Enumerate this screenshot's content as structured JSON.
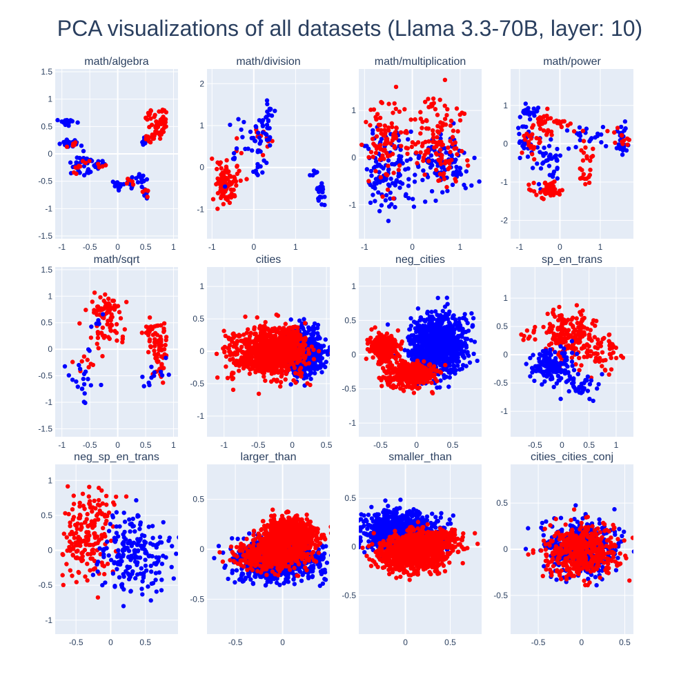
{
  "title": "PCA visualizations of all datasets (Llama 3.3-70B, layer: 10)",
  "colors": {
    "series_a": "#ff0000",
    "series_b": "#0000ff",
    "plot_bg": "#e5ecf6",
    "text": "#2a3f5f"
  },
  "chart_data": [
    {
      "type": "scatter",
      "title": "math/algebra",
      "xlim": [
        -1.12,
        1.08
      ],
      "ylim": [
        -1.55,
        1.55
      ],
      "xticks": [
        -1,
        -0.5,
        0,
        0.5,
        1
      ],
      "yticks": [
        -1.5,
        -1,
        -0.5,
        0,
        0.5,
        1,
        1.5
      ],
      "clusters": [
        {
          "color": "blue",
          "cx": -0.9,
          "cy": 0.58,
          "sx": 0.07,
          "sy": 0.03,
          "n": 16
        },
        {
          "color": "blue",
          "cx": -0.85,
          "cy": 0.18,
          "sx": 0.1,
          "sy": 0.04,
          "n": 22
        },
        {
          "color": "blue",
          "cx": -0.75,
          "cy": -0.25,
          "sx": 0.06,
          "sy": 0.06,
          "n": 12
        },
        {
          "color": "blue",
          "cx": -0.58,
          "cy": -0.1,
          "sx": 0.06,
          "sy": 0.05,
          "n": 16
        },
        {
          "color": "blue",
          "cx": -0.55,
          "cy": -0.3,
          "sx": 0.05,
          "sy": 0.05,
          "n": 10
        },
        {
          "color": "blue",
          "cx": -0.32,
          "cy": -0.2,
          "sx": 0.06,
          "sy": 0.03,
          "n": 12
        },
        {
          "color": "blue",
          "cx": 0.0,
          "cy": -0.55,
          "sx": 0.06,
          "sy": 0.05,
          "n": 16
        },
        {
          "color": "blue",
          "cx": 0.22,
          "cy": -0.5,
          "sx": 0.05,
          "sy": 0.05,
          "n": 10
        },
        {
          "color": "blue",
          "cx": 0.42,
          "cy": -0.45,
          "sx": 0.05,
          "sy": 0.06,
          "n": 12
        },
        {
          "color": "blue",
          "cx": 0.5,
          "cy": -0.72,
          "sx": 0.03,
          "sy": 0.05,
          "n": 10
        },
        {
          "color": "blue",
          "cx": 0.48,
          "cy": 0.22,
          "sx": 0.05,
          "sy": 0.04,
          "n": 12
        },
        {
          "color": "red",
          "cx": 0.75,
          "cy": 0.55,
          "sx": 0.08,
          "sy": 0.16,
          "n": 55
        },
        {
          "color": "red",
          "cx": 0.58,
          "cy": 0.28,
          "sx": 0.06,
          "sy": 0.06,
          "n": 12
        },
        {
          "color": "red",
          "cx": 0.55,
          "cy": 0.72,
          "sx": 0.05,
          "sy": 0.05,
          "n": 8
        },
        {
          "color": "red",
          "cx": -0.88,
          "cy": 0.18,
          "sx": 0.08,
          "sy": 0.03,
          "n": 5
        },
        {
          "color": "red",
          "cx": -0.55,
          "cy": -0.2,
          "sx": 0.07,
          "sy": 0.05,
          "n": 6
        },
        {
          "color": "red",
          "cx": -0.3,
          "cy": -0.22,
          "sx": 0.05,
          "sy": 0.03,
          "n": 4
        },
        {
          "color": "red",
          "cx": 0.2,
          "cy": -0.48,
          "sx": 0.06,
          "sy": 0.05,
          "n": 5
        },
        {
          "color": "red",
          "cx": 0.5,
          "cy": -0.7,
          "sx": 0.04,
          "sy": 0.05,
          "n": 5
        },
        {
          "color": "red",
          "cx": -0.75,
          "cy": -0.3,
          "sx": 0.04,
          "sy": 0.04,
          "n": 3
        }
      ]
    },
    {
      "type": "scatter",
      "title": "math/division",
      "xlim": [
        -1.12,
        1.82
      ],
      "ylim": [
        -1.7,
        2.35
      ],
      "xticks": [
        -1,
        0,
        1
      ],
      "yticks": [
        -1,
        0,
        1,
        2
      ],
      "clusters": [
        {
          "color": "red",
          "cx": -0.75,
          "cy": -0.45,
          "sx": 0.09,
          "sy": 0.25,
          "n": 80
        },
        {
          "color": "red",
          "cx": -0.5,
          "cy": -0.55,
          "sx": 0.08,
          "sy": 0.15,
          "n": 15
        },
        {
          "color": "red",
          "cx": -0.3,
          "cy": 0.1,
          "sx": 0.12,
          "sy": 0.3,
          "n": 10
        },
        {
          "color": "red",
          "cx": 0.2,
          "cy": 0.7,
          "sx": 0.1,
          "sy": 0.3,
          "n": 12
        },
        {
          "color": "blue",
          "cx": 0.1,
          "cy": 0.7,
          "sx": 0.15,
          "sy": 0.3,
          "n": 35
        },
        {
          "color": "blue",
          "cx": 0.35,
          "cy": 1.2,
          "sx": 0.06,
          "sy": 0.2,
          "n": 15
        },
        {
          "color": "blue",
          "cx": -0.5,
          "cy": 0.5,
          "sx": 0.15,
          "sy": 0.3,
          "n": 10
        },
        {
          "color": "blue",
          "cx": 0.1,
          "cy": -0.05,
          "sx": 0.04,
          "sy": 0.1,
          "n": 8
        },
        {
          "color": "blue",
          "cx": 1.6,
          "cy": -0.55,
          "sx": 0.05,
          "sy": 0.15,
          "n": 25
        },
        {
          "color": "blue",
          "cx": 1.45,
          "cy": -0.1,
          "sx": 0.05,
          "sy": 0.08,
          "n": 6
        }
      ]
    },
    {
      "type": "scatter",
      "title": "math/multiplication",
      "xlim": [
        -1.12,
        1.45
      ],
      "ylim": [
        -1.72,
        1.88
      ],
      "xticks": [
        -1,
        0,
        1
      ],
      "yticks": [
        -1,
        0,
        1
      ],
      "clusters": [
        {
          "color": "blue",
          "cx": -0.55,
          "cy": -0.3,
          "sx": 0.25,
          "sy": 0.45,
          "n": 120
        },
        {
          "color": "blue",
          "cx": 0.6,
          "cy": -0.15,
          "sx": 0.35,
          "sy": 0.35,
          "n": 100
        },
        {
          "color": "red",
          "cx": -0.55,
          "cy": 0.35,
          "sx": 0.25,
          "sy": 0.45,
          "n": 100
        },
        {
          "color": "red",
          "cx": 0.55,
          "cy": 0.3,
          "sx": 0.35,
          "sy": 0.45,
          "n": 110
        },
        {
          "color": "red",
          "cx": 0.35,
          "cy": 1.15,
          "sx": 0.06,
          "sy": 0.08,
          "n": 8
        }
      ]
    },
    {
      "type": "scatter",
      "title": "math/power",
      "xlim": [
        -1.22,
        1.82
      ],
      "ylim": [
        -2.48,
        1.95
      ],
      "xticks": [
        -1,
        0,
        1
      ],
      "yticks": [
        -2,
        -1,
        0,
        1
      ],
      "clusters": [
        {
          "color": "blue",
          "cx": -0.85,
          "cy": 0.2,
          "sx": 0.1,
          "sy": 0.3,
          "n": 30
        },
        {
          "color": "blue",
          "cx": -0.75,
          "cy": 0.85,
          "sx": 0.1,
          "sy": 0.1,
          "n": 15
        },
        {
          "color": "blue",
          "cx": -0.3,
          "cy": -0.4,
          "sx": 0.25,
          "sy": 0.3,
          "n": 40
        },
        {
          "color": "blue",
          "cx": 0.7,
          "cy": 0.2,
          "sx": 0.3,
          "sy": 0.15,
          "n": 20
        },
        {
          "color": "blue",
          "cx": 1.55,
          "cy": 0.1,
          "sx": 0.08,
          "sy": 0.2,
          "n": 25
        },
        {
          "color": "red",
          "cx": -0.45,
          "cy": 0.55,
          "sx": 0.15,
          "sy": 0.15,
          "n": 25
        },
        {
          "color": "red",
          "cx": -0.7,
          "cy": 0.1,
          "sx": 0.12,
          "sy": 0.25,
          "n": 20
        },
        {
          "color": "red",
          "cx": -0.25,
          "cy": -1.2,
          "sx": 0.18,
          "sy": 0.15,
          "n": 45
        },
        {
          "color": "red",
          "cx": 0.1,
          "cy": 0.55,
          "sx": 0.15,
          "sy": 0.1,
          "n": 12
        },
        {
          "color": "red",
          "cx": 0.7,
          "cy": -0.2,
          "sx": 0.12,
          "sy": 0.3,
          "n": 15
        },
        {
          "color": "red",
          "cx": 0.65,
          "cy": -0.85,
          "sx": 0.08,
          "sy": 0.1,
          "n": 10
        },
        {
          "color": "red",
          "cx": 1.5,
          "cy": 0.2,
          "sx": 0.1,
          "sy": 0.15,
          "n": 12
        }
      ]
    },
    {
      "type": "scatter",
      "title": "math/sqrt",
      "xlim": [
        -1.12,
        1.08
      ],
      "ylim": [
        -1.65,
        1.55
      ],
      "xticks": [
        -1,
        -0.5,
        0,
        0.5,
        1
      ],
      "yticks": [
        -1.5,
        -1,
        -0.5,
        0,
        0.5,
        1,
        1.5
      ],
      "clusters": [
        {
          "color": "red",
          "cx": -0.2,
          "cy": 0.7,
          "sx": 0.15,
          "sy": 0.12,
          "n": 60
        },
        {
          "color": "red",
          "cx": -0.15,
          "cy": 0.3,
          "sx": 0.2,
          "sy": 0.15,
          "n": 25
        },
        {
          "color": "red",
          "cx": 0.6,
          "cy": 0.35,
          "sx": 0.1,
          "sy": 0.15,
          "n": 25
        },
        {
          "color": "red",
          "cx": 0.75,
          "cy": -0.1,
          "sx": 0.08,
          "sy": 0.3,
          "n": 55
        },
        {
          "color": "red",
          "cx": -0.45,
          "cy": -0.2,
          "sx": 0.15,
          "sy": 0.15,
          "n": 10
        },
        {
          "color": "blue",
          "cx": -0.75,
          "cy": -0.65,
          "sx": 0.15,
          "sy": 0.1,
          "n": 8
        },
        {
          "color": "blue",
          "cx": -0.6,
          "cy": -0.97,
          "sx": 0.02,
          "sy": 0.06,
          "n": 3
        },
        {
          "color": "blue",
          "cx": -0.5,
          "cy": -0.2,
          "sx": 0.15,
          "sy": 0.3,
          "n": 10
        },
        {
          "color": "blue",
          "cx": 0.7,
          "cy": -0.45,
          "sx": 0.15,
          "sy": 0.15,
          "n": 12
        },
        {
          "color": "blue",
          "cx": -0.4,
          "cy": 0.55,
          "sx": 0.15,
          "sy": 0.15,
          "n": 5
        }
      ]
    },
    {
      "type": "scatter",
      "title": "cities",
      "xlim": [
        -1.25,
        0.55
      ],
      "ylim": [
        -1.32,
        1.3
      ],
      "xticks": [
        -1,
        -0.5,
        0,
        0.5
      ],
      "yticks": [
        -1,
        -0.5,
        0,
        0.5,
        1
      ],
      "clusters": [
        {
          "color": "blue",
          "cx": 0.15,
          "cy": 0.0,
          "sx": 0.15,
          "sy": 0.17,
          "n": 600
        },
        {
          "color": "red",
          "cx": -0.35,
          "cy": -0.02,
          "sx": 0.28,
          "sy": 0.18,
          "n": 700
        },
        {
          "color": "red",
          "cx": -0.05,
          "cy": 0.05,
          "sx": 0.12,
          "sy": 0.15,
          "n": 250
        }
      ]
    },
    {
      "type": "scatter",
      "title": "neg_cities",
      "xlim": [
        -0.8,
        0.9
      ],
      "ylim": [
        -1.2,
        1.28
      ],
      "xticks": [
        -0.5,
        0,
        0.5
      ],
      "yticks": [
        -1,
        -0.5,
        0,
        0.5,
        1
      ],
      "clusters": [
        {
          "color": "blue",
          "cx": 0.28,
          "cy": 0.15,
          "sx": 0.2,
          "sy": 0.22,
          "n": 900
        },
        {
          "color": "red",
          "cx": -0.45,
          "cy": 0.1,
          "sx": 0.09,
          "sy": 0.1,
          "n": 300
        },
        {
          "color": "red",
          "cx": -0.1,
          "cy": -0.3,
          "sx": 0.17,
          "sy": 0.09,
          "n": 350
        }
      ]
    },
    {
      "type": "scatter",
      "title": "sp_en_trans",
      "xlim": [
        -0.95,
        1.32
      ],
      "ylim": [
        -1.45,
        1.55
      ],
      "xticks": [
        -0.5,
        0,
        0.5,
        1
      ],
      "yticks": [
        -1,
        -0.5,
        0,
        0.5,
        1
      ],
      "clusters": [
        {
          "color": "red",
          "cx": 0.1,
          "cy": 0.35,
          "sx": 0.22,
          "sy": 0.2,
          "n": 180
        },
        {
          "color": "red",
          "cx": 0.7,
          "cy": 0.0,
          "sx": 0.2,
          "sy": 0.2,
          "n": 60
        },
        {
          "color": "blue",
          "cx": -0.2,
          "cy": -0.2,
          "sx": 0.2,
          "sy": 0.15,
          "n": 140
        },
        {
          "color": "blue",
          "cx": 0.35,
          "cy": -0.55,
          "sx": 0.15,
          "sy": 0.1,
          "n": 40
        },
        {
          "color": "red",
          "cx": -0.6,
          "cy": 0.35,
          "sx": 0.08,
          "sy": 0.1,
          "n": 10
        }
      ]
    },
    {
      "type": "scatter",
      "title": "neg_sp_en_trans",
      "xlim": [
        -0.8,
        0.97
      ],
      "ylim": [
        -1.2,
        1.23
      ],
      "xticks": [
        -0.5,
        0,
        0.5
      ],
      "yticks": [
        -1,
        -0.5,
        0,
        0.5,
        1
      ],
      "clusters": [
        {
          "color": "red",
          "cx": -0.35,
          "cy": 0.15,
          "sx": 0.2,
          "sy": 0.3,
          "n": 170
        },
        {
          "color": "red",
          "cx": -0.1,
          "cy": 0.6,
          "sx": 0.08,
          "sy": 0.12,
          "n": 20
        },
        {
          "color": "blue",
          "cx": 0.35,
          "cy": -0.05,
          "sx": 0.25,
          "sy": 0.3,
          "n": 200
        }
      ]
    },
    {
      "type": "scatter",
      "title": "larger_than",
      "xlim": [
        -0.8,
        0.5
      ],
      "ylim": [
        -0.85,
        0.85
      ],
      "xticks": [
        -0.5,
        0
      ],
      "yticks": [
        -0.5,
        0,
        0.5
      ],
      "clusters": [
        {
          "color": "blue",
          "cx": -0.05,
          "cy": -0.1,
          "sx": 0.22,
          "sy": 0.1,
          "n": 900
        },
        {
          "color": "red",
          "cx": 0.1,
          "cy": 0.15,
          "sx": 0.15,
          "sy": 0.08,
          "n": 600
        },
        {
          "color": "red",
          "cx": -0.1,
          "cy": -0.05,
          "sx": 0.18,
          "sy": 0.08,
          "n": 500
        }
      ]
    },
    {
      "type": "scatter",
      "title": "smaller_than",
      "xlim": [
        -0.52,
        0.85
      ],
      "ylim": [
        -0.9,
        0.85
      ],
      "xticks": [
        0,
        0.5
      ],
      "yticks": [
        -0.5,
        0,
        0.5
      ],
      "clusters": [
        {
          "color": "blue",
          "cx": -0.05,
          "cy": 0.15,
          "sx": 0.2,
          "sy": 0.1,
          "n": 900
        },
        {
          "color": "red",
          "cx": 0.05,
          "cy": -0.1,
          "sx": 0.2,
          "sy": 0.08,
          "n": 600
        },
        {
          "color": "red",
          "cx": 0.25,
          "cy": 0.05,
          "sx": 0.18,
          "sy": 0.07,
          "n": 400
        }
      ]
    },
    {
      "type": "scatter",
      "title": "cities_cities_conj",
      "xlim": [
        -0.82,
        0.6
      ],
      "ylim": [
        -0.92,
        0.92
      ],
      "xticks": [
        -0.5,
        0,
        0.5
      ],
      "yticks": [
        -0.5,
        0,
        0.5
      ],
      "clusters": [
        {
          "color": "blue",
          "cx": 0.0,
          "cy": 0.02,
          "sx": 0.2,
          "sy": 0.15,
          "n": 500
        },
        {
          "color": "red",
          "cx": 0.0,
          "cy": -0.02,
          "sx": 0.22,
          "sy": 0.14,
          "n": 450
        }
      ]
    }
  ]
}
